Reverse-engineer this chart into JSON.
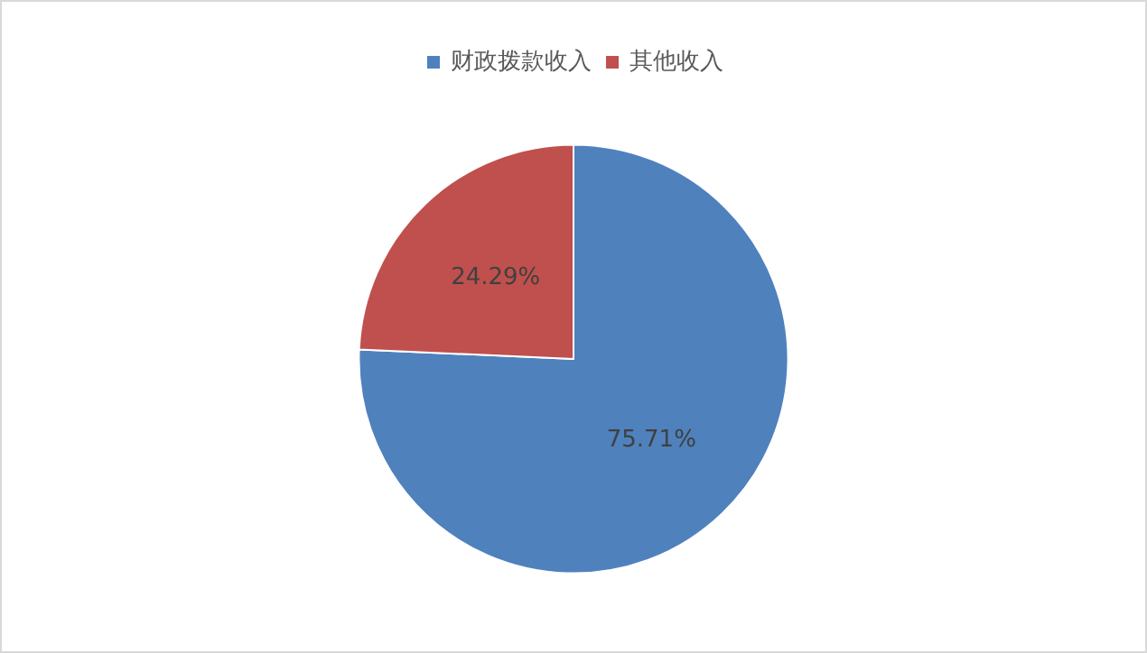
{
  "chart_data": {
    "type": "pie",
    "categories": [
      "财政拨款收入",
      "其他收入"
    ],
    "values": [
      75.71,
      24.29
    ],
    "colors": [
      "#4f81bd",
      "#c0504d"
    ],
    "value_labels": [
      "75.71%",
      "24.29%"
    ],
    "legend": "top"
  }
}
